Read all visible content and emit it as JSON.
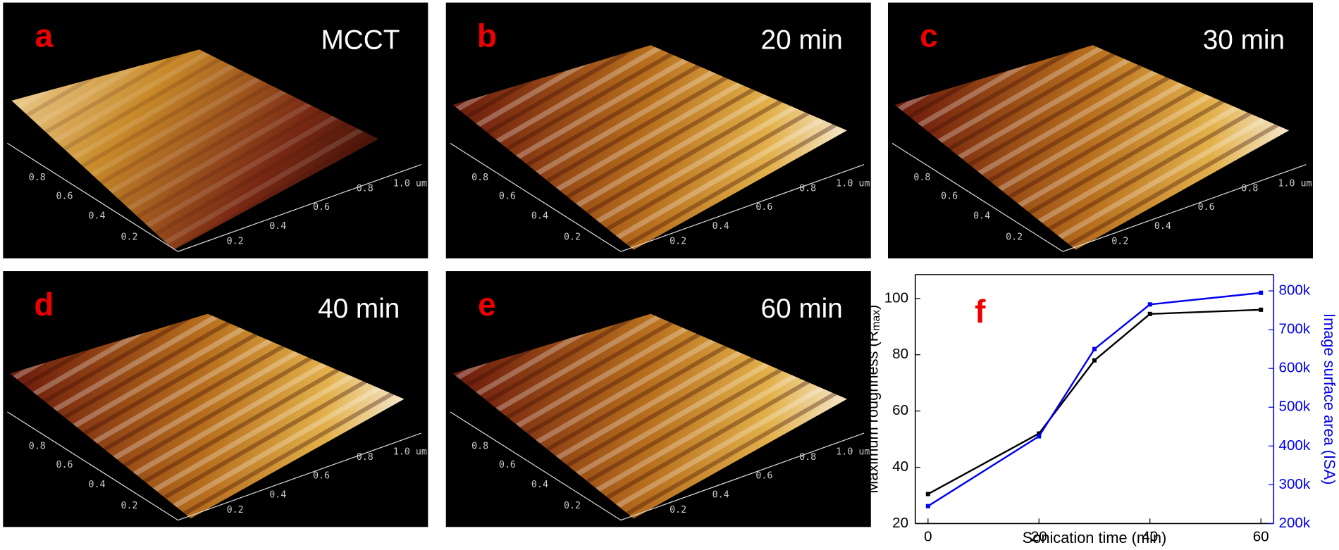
{
  "panels": [
    {
      "letter": "a",
      "title": "MCCT",
      "left_ticks": [
        "0.8",
        "0.6",
        "0.4",
        "0.2"
      ],
      "right_ticks": [
        "0.2",
        "0.4",
        "0.6",
        "0.8",
        "1.0 um"
      ]
    },
    {
      "letter": "b",
      "title": "20 min",
      "left_ticks": [
        "0.8",
        "0.6",
        "0.4",
        "0.2"
      ],
      "right_ticks": [
        "0.2",
        "0.4",
        "0.6",
        "0.8",
        "1.0 um"
      ]
    },
    {
      "letter": "c",
      "title": "30 min",
      "left_ticks": [
        "0.8",
        "0.6",
        "0.4",
        "0.2"
      ],
      "right_ticks": [
        "0.2",
        "0.4",
        "0.6",
        "0.8",
        "1.0 um"
      ]
    },
    {
      "letter": "d",
      "title": "40 min",
      "left_ticks": [
        "0.8",
        "0.6",
        "0.4",
        "0.2"
      ],
      "right_ticks": [
        "0.2",
        "0.4",
        "0.6",
        "0.8",
        "1.0 um"
      ]
    },
    {
      "letter": "e",
      "title": "60 min",
      "left_ticks": [
        "0.8",
        "0.6",
        "0.4",
        "0.2"
      ],
      "right_ticks": [
        "0.2",
        "0.4",
        "0.6",
        "0.8",
        "1.0 um"
      ]
    }
  ],
  "chart_data": {
    "type": "line",
    "panel_letter": "f",
    "x_label": "Sonication time (min)",
    "y_label": {
      "main": "Maximum roughness (R",
      "sub": "max",
      "end": ")"
    },
    "y2_label": "Image surface area (ISA)",
    "x": [
      0,
      20,
      30,
      40,
      60
    ],
    "series": [
      {
        "color": "#000000",
        "values": [
          30.5,
          52,
          78,
          94.5,
          96
        ]
      },
      {
        "color": "#0000ee",
        "axis": "y2",
        "values": [
          245000,
          425000,
          650000,
          765000,
          795000
        ]
      }
    ],
    "xlim": [
      -2.3,
      62.3
    ],
    "xticks": [
      0,
      20,
      40,
      60
    ],
    "ylim": [
      20,
      108.5
    ],
    "yticks": [
      20,
      40,
      60,
      80,
      100
    ],
    "y2lim": [
      200000,
      842000
    ],
    "y2ticks": [
      {
        "value": 200000,
        "label": "200k"
      },
      {
        "value": 300000,
        "label": "300k"
      },
      {
        "value": 400000,
        "label": "400k"
      },
      {
        "value": 500000,
        "label": "500k"
      },
      {
        "value": 600000,
        "label": "600k"
      },
      {
        "value": 700000,
        "label": "700k"
      },
      {
        "value": 800000,
        "label": "800k"
      }
    ]
  }
}
